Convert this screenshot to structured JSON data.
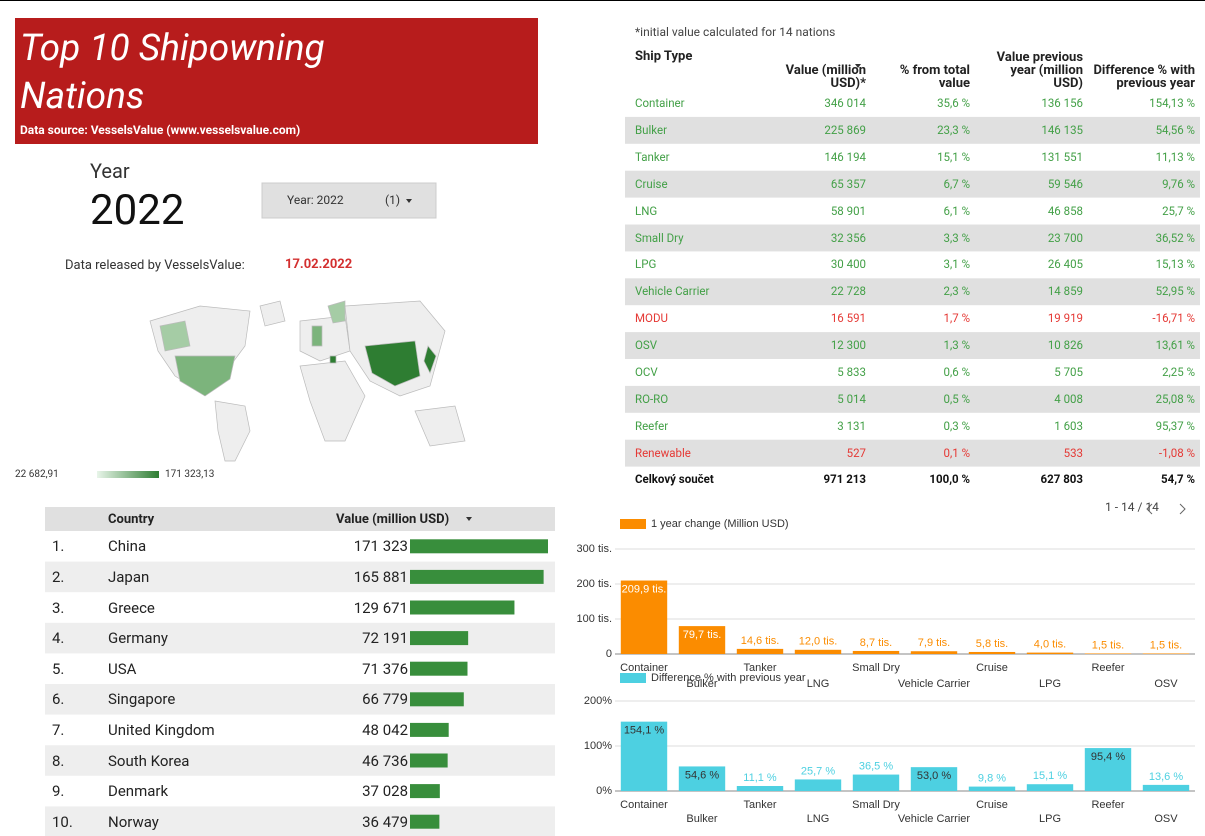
{
  "header": {
    "title": "Top 10 Shipowning Nations",
    "source": "Data source: VesselsValue (www.vesselsvalue.com)"
  },
  "year": {
    "label": "Year",
    "value": "2022",
    "dropdown": "Year: 2022",
    "dropdown_count": "(1)"
  },
  "release": {
    "label": "Data released by VesselsValue:",
    "date": "17.02.2022"
  },
  "map_legend": {
    "min": "22 682,91",
    "max": "171 323,13"
  },
  "country_table": {
    "columns": [
      "Country",
      "Value (million USD)"
    ],
    "rows": [
      {
        "rank": "1.",
        "country": "China",
        "value": 171323,
        "value_label": "171 323"
      },
      {
        "rank": "2.",
        "country": "Japan",
        "value": 165881,
        "value_label": "165 881"
      },
      {
        "rank": "3.",
        "country": "Greece",
        "value": 129671,
        "value_label": "129 671"
      },
      {
        "rank": "4.",
        "country": "Germany",
        "value": 72191,
        "value_label": "72 191"
      },
      {
        "rank": "5.",
        "country": "USA",
        "value": 71376,
        "value_label": "71 376"
      },
      {
        "rank": "6.",
        "country": "Singapore",
        "value": 66779,
        "value_label": "66 779"
      },
      {
        "rank": "7.",
        "country": "United Kingdom",
        "value": 48042,
        "value_label": "48 042"
      },
      {
        "rank": "8.",
        "country": "South Korea",
        "value": 46736,
        "value_label": "46 736"
      },
      {
        "rank": "9.",
        "country": "Denmark",
        "value": 37028,
        "value_label": "37 028"
      },
      {
        "rank": "10.",
        "country": "Norway",
        "value": 36479,
        "value_label": "36 479"
      }
    ],
    "bar_color": "#388e3c"
  },
  "ship_table": {
    "note": "*initial value calculated for 14 nations",
    "columns": [
      "Ship Type",
      "Value (million USD)*",
      "% from total value",
      "Value previous year (million USD)",
      "Difference % with previous year"
    ],
    "rows": [
      [
        "Container",
        "346 014",
        "35,6 %",
        "136 156",
        "154,13 %"
      ],
      [
        "Bulker",
        "225 869",
        "23,3 %",
        "146 135",
        "54,56 %"
      ],
      [
        "Tanker",
        "146 194",
        "15,1 %",
        "131 551",
        "11,13 %"
      ],
      [
        "Cruise",
        "65 357",
        "6,7 %",
        "59 546",
        "9,76 %"
      ],
      [
        "LNG",
        "58 901",
        "6,1 %",
        "46 858",
        "25,7 %"
      ],
      [
        "Small Dry",
        "32 356",
        "3,3 %",
        "23 700",
        "36,52 %"
      ],
      [
        "LPG",
        "30 400",
        "3,1 %",
        "26 405",
        "15,13 %"
      ],
      [
        "Vehicle Carrier",
        "22 728",
        "2,3 %",
        "14 859",
        "52,95 %"
      ],
      [
        "MODU",
        "16 591",
        "1,7 %",
        "19 919",
        "-16,71 %"
      ],
      [
        "OSV",
        "12 300",
        "1,3 %",
        "10 826",
        "13,61 %"
      ],
      [
        "OCV",
        "5 833",
        "0,6 %",
        "5 705",
        "2,25 %"
      ],
      [
        "RO-RO",
        "5 014",
        "0,5 %",
        "4 008",
        "25,08 %"
      ],
      [
        "Reefer",
        "3 131",
        "0,3 %",
        "1 603",
        "95,37 %"
      ],
      [
        "Renewable",
        "527",
        "0,1 %",
        "533",
        "-1,08 %"
      ]
    ],
    "total": [
      "Celkový součet",
      "971 213",
      "100,0 %",
      "627 803",
      "54,7 %"
    ],
    "pagination": "1 - 14 / 14"
  },
  "chart_data": [
    {
      "type": "bar",
      "series": [
        {
          "name": "1 year change (Million USD)",
          "color": "#fb8c00",
          "values": [
            209900,
            79700,
            14600,
            12000,
            8700,
            7900,
            5800,
            4000,
            1500,
            1500
          ],
          "value_labels": [
            "209,9 tis.",
            "79,7 tis.",
            "14,6 tis.",
            "12,0 tis.",
            "8,7 tis.",
            "7,9 tis.",
            "5,8 tis.",
            "4,0 tis.",
            "1,5 tis.",
            "1,5 tis."
          ]
        }
      ],
      "categories": [
        "Container",
        "Bulker",
        "Tanker",
        "LNG",
        "Small Dry",
        "Vehicle Carrier",
        "Cruise",
        "LPG",
        "Reefer",
        "OSV"
      ],
      "ylim": [
        0,
        300000
      ],
      "yticks": [
        0,
        {
          "value": 100000,
          "label": "100 tis."
        },
        {
          "value": 200000,
          "label": "200 tis."
        },
        {
          "value": 300000,
          "label": "300 tis."
        }
      ],
      "grid": true
    },
    {
      "type": "bar",
      "series": [
        {
          "name": "Difference % with previous year",
          "color": "#4dd0e1",
          "values": [
            154.1,
            54.6,
            11.1,
            25.7,
            36.5,
            53.0,
            9.8,
            15.1,
            95.4,
            13.6
          ],
          "value_labels": [
            "154,1 %",
            "54,6 %",
            "11,1 %",
            "25,7 %",
            "36,5 %",
            "53,0 %",
            "9,8 %",
            "15,1 %",
            "95,4 %",
            "13,6 %"
          ]
        }
      ],
      "categories": [
        "Container",
        "Bulker",
        "Tanker",
        "LNG",
        "Small Dry",
        "Vehicle Carrier",
        "Cruise",
        "LPG",
        "Reefer",
        "OSV"
      ],
      "ylim": [
        0,
        200
      ],
      "yticks": [
        {
          "value": 0,
          "label": "0%"
        },
        {
          "value": 100,
          "label": "100%"
        },
        {
          "value": 200,
          "label": "200%"
        }
      ],
      "grid": true
    }
  ]
}
